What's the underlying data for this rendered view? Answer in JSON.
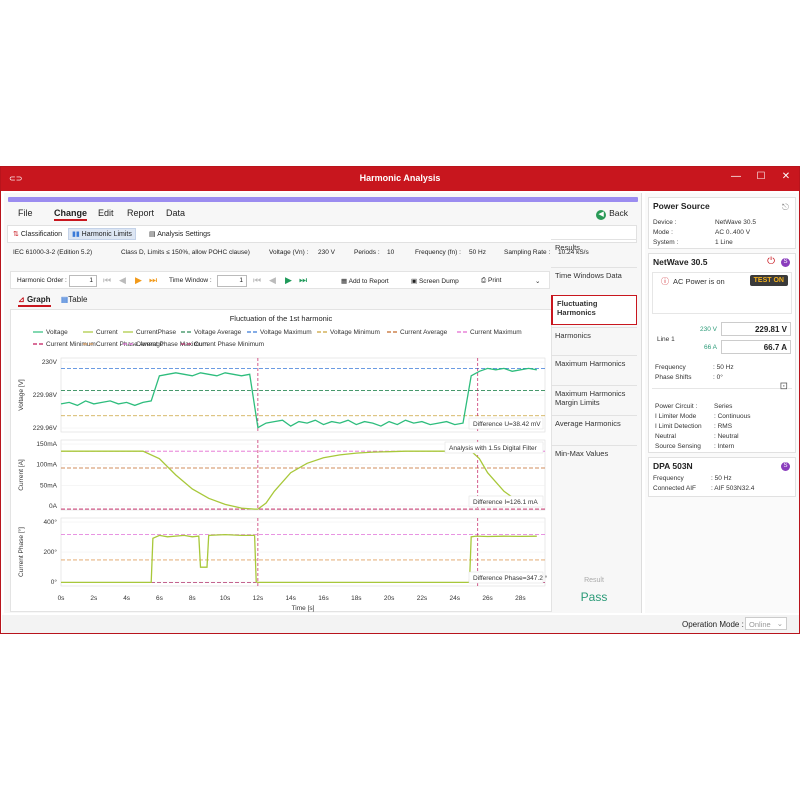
{
  "window": {
    "title": "Harmonic Analysis",
    "min": "—",
    "max": "☐",
    "close": "✕",
    "icon": "app-icon"
  },
  "menu": {
    "file": "File",
    "change": "Change",
    "edit": "Edit",
    "report": "Report",
    "data": "Data",
    "back": "Back"
  },
  "ribbon": {
    "classification": "Classification",
    "harmonic_limits": "Harmonic Limits",
    "analysis_settings": "Analysis Settings"
  },
  "info": {
    "standard": "IEC 61000-3-2 (Edition 5.2)",
    "class": "Class D, Limits ≤ 150%, allow POHC clause)",
    "voltage_label": "Voltage (Vn) :",
    "voltage_value": "230 V",
    "periods_label": "Periods :",
    "periods_value": "10",
    "frequency_label": "Frequency (fn) :",
    "frequency_value": "50 Hz",
    "sampling_label": "Sampling Rate :",
    "sampling_value": "10.24 kS/s"
  },
  "toolbar": {
    "harmonic_order_label": "Harmonic Order :",
    "harmonic_order_value": "1",
    "time_window_label": "Time Window :",
    "time_window_value": "1",
    "add_to_report": "Add to Report",
    "screen_dump": "Screen Dump",
    "print": "Print"
  },
  "view_tabs": {
    "graph": "Graph",
    "table": "Table"
  },
  "chart_title": "Fluctuation of the 1st harmonic",
  "legend": [
    {
      "name": "Voltage",
      "color": "#2ebd7d",
      "dash": ""
    },
    {
      "name": "Current",
      "color": "#a8c83a",
      "dash": ""
    },
    {
      "name": "CurrentPhase",
      "color": "#a8c83a",
      "dash": ""
    },
    {
      "name": "Voltage Average",
      "color": "#2e8b57",
      "dash": "4,2"
    },
    {
      "name": "Voltage Maximum",
      "color": "#3a7ad8",
      "dash": "4,2"
    },
    {
      "name": "Voltage Minimum",
      "color": "#c9a23a",
      "dash": "4,2"
    },
    {
      "name": "Current Average",
      "color": "#c46a2a",
      "dash": "4,2"
    },
    {
      "name": "Current Maximum",
      "color": "#e36ad0",
      "dash": "4,2"
    },
    {
      "name": "Current Minimum",
      "color": "#c2185b",
      "dash": "4,2"
    },
    {
      "name": "Current Phase Average",
      "color": "#e0a060",
      "dash": "4,2"
    },
    {
      "name": "Current Phase Maximum",
      "color": "#e070d8",
      "dash": "4,2"
    },
    {
      "name": "Current Phase Minimum",
      "color": "#b0306a",
      "dash": "4,2"
    }
  ],
  "chart_data": [
    {
      "type": "line",
      "ylabel": "Voltage [V]",
      "yticks": [
        "230V",
        "229.98V",
        "229.96V"
      ],
      "ylim": [
        229.955,
        230.005
      ],
      "annotation": "Difference U=38.42 mV",
      "series": [
        {
          "name": "Voltage",
          "x": [
            0,
            0.5,
            1,
            1.5,
            2,
            2.5,
            3,
            3.5,
            4,
            4.5,
            5,
            5.5,
            6,
            6.5,
            7,
            7.5,
            8,
            8.5,
            9,
            9.5,
            10,
            10.5,
            11,
            11.5,
            12,
            12.5,
            13,
            13.5,
            14,
            14.5,
            15,
            15.5,
            16,
            16.5,
            17,
            17.5,
            18,
            18.5,
            19,
            19.5,
            20,
            20.5,
            21,
            21.5,
            22,
            22.5,
            23,
            23.5,
            24,
            24.5,
            25,
            25.5,
            26,
            26.5,
            27,
            27.5,
            28,
            28.5,
            29
          ],
          "y": [
            229.974,
            229.975,
            229.973,
            229.976,
            229.974,
            229.975,
            229.976,
            229.974,
            229.975,
            229.973,
            229.975,
            229.976,
            229.993,
            229.994,
            229.995,
            229.994,
            229.993,
            229.995,
            229.994,
            229.993,
            229.995,
            229.994,
            229.993,
            229.994,
            229.958,
            229.961,
            229.962,
            229.963,
            229.959,
            229.962,
            229.961,
            229.963,
            229.96,
            229.962,
            229.961,
            229.963,
            229.96,
            229.962,
            229.961,
            229.959,
            229.962,
            229.96,
            229.963,
            229.961,
            229.962,
            229.96,
            229.961,
            229.962,
            229.96,
            229.961,
            229.993,
            229.996,
            229.998,
            229.997,
            229.998,
            229.996,
            229.997,
            229.998,
            229.997
          ]
        }
      ]
    },
    {
      "type": "line",
      "ylabel": "Current [A]",
      "yticks": [
        "150mA",
        "100mA",
        "50mA",
        "0A"
      ],
      "ylim": [
        0,
        150
      ],
      "annotation": "Analysis with 1.5s Digital Filter",
      "annotation2": "Difference I=126.1 mA",
      "series": [
        {
          "name": "Current",
          "x": [
            0,
            1,
            2,
            3,
            4,
            5,
            6,
            7,
            8,
            9,
            10,
            11,
            11.8,
            12,
            12.5,
            13,
            14,
            15,
            16,
            17,
            18,
            19,
            20,
            21,
            22,
            23,
            24,
            25,
            25.5,
            26,
            27,
            28,
            29
          ],
          "y": [
            126,
            126,
            126,
            126,
            126,
            126,
            110,
            75,
            45,
            25,
            12,
            4,
            2,
            2,
            15,
            40,
            80,
            100,
            112,
            118,
            122,
            124,
            125,
            126,
            126,
            126,
            126,
            126,
            110,
            80,
            40,
            15,
            8
          ]
        }
      ]
    },
    {
      "type": "line",
      "ylabel": "Current Phase [°]",
      "yticks": [
        "400°",
        "200°",
        "0°"
      ],
      "ylim": [
        -20,
        450
      ],
      "annotation": "Difference Phase=347.2 °",
      "series": [
        {
          "name": "CurrentPhase",
          "x": [
            0,
            5.5,
            5.6,
            6,
            6.5,
            7,
            7.5,
            8,
            8.4,
            8.5,
            8.9,
            9,
            10,
            11,
            11.8,
            11.9,
            12,
            24.9,
            25,
            25.3,
            26,
            27,
            28,
            29
          ],
          "y": [
            5,
            5,
            310,
            330,
            320,
            325,
            330,
            320,
            325,
            110,
            110,
            330,
            335,
            330,
            330,
            10,
            5,
            5,
            320,
            325,
            322,
            324,
            323,
            324
          ]
        }
      ]
    }
  ],
  "x_axis": {
    "label": "Time [s]",
    "ticks": [
      "0s",
      "2s",
      "4s",
      "6s",
      "8s",
      "10s",
      "12s",
      "14s",
      "16s",
      "18s",
      "20s",
      "22s",
      "24s",
      "26s",
      "28s"
    ]
  },
  "side_tabs": [
    "Results",
    "Time Windows Data",
    "Fluctuating Harmonics",
    "Harmonics",
    "Maximum Harmonics",
    "Maximum Harmonics Margin Limits",
    "Average Harmonics",
    "Min-Max Values"
  ],
  "result": {
    "label": "Result",
    "value": "Pass"
  },
  "status": {
    "operation_mode_label": "Operation Mode :",
    "operation_mode_value": "Online"
  },
  "power_source": {
    "title": "Power Source",
    "device_label": "Device :",
    "device_value": "NetWave 30.5",
    "mode_label": "Mode :",
    "mode_value": "AC 0..400 V",
    "system_label": "System :",
    "system_value": "1 Line"
  },
  "netwave": {
    "title": "NetWave 30.5",
    "badge": "S",
    "ac_power": "AC Power is on",
    "test_on": "TEST ON",
    "line_label": "Line 1",
    "v_set": "230 V",
    "v_meas": "229.81 V",
    "i_set": "66 A",
    "i_meas": "66.7 A",
    "frequency_label": "Frequency",
    "frequency_value": ": 50 Hz",
    "phase_label": "Phase Shifts",
    "phase_value": ": 0°",
    "power_circuit_label": "Power Circuit :",
    "power_circuit_value": "Series",
    "ilimiter_label": "I Limiter Mode",
    "ilimiter_value": ": Continuous",
    "ilimitdet_label": "I Limit Detection",
    "ilimitdet_value": ": RMS",
    "neutral_label": "Neutral",
    "neutral_value": ": Neutral",
    "sensing_label": "Source Sensing",
    "sensing_value": ": Intern"
  },
  "dpa": {
    "title": "DPA 503N",
    "badge": "S",
    "frequency_label": "Frequency",
    "frequency_value": ": 50 Hz",
    "aif_label": "Connected AIF",
    "aif_value": ": AIF 503N32.4"
  }
}
